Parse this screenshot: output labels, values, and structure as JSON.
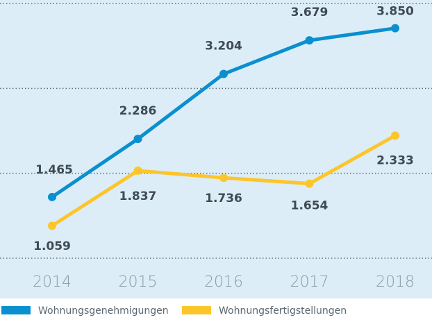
{
  "chart_data": {
    "type": "line",
    "categories": [
      "2014",
      "2015",
      "2016",
      "2017",
      "2018"
    ],
    "series": [
      {
        "name": "Wohnungsgenehmigungen",
        "color": "#0a8fcf",
        "values": [
          1465,
          2286,
          3204,
          3679,
          3850
        ],
        "value_labels": [
          "1.465",
          "2.286",
          "3.204",
          "3.679",
          "3.850"
        ]
      },
      {
        "name": "Wohnungsfertigstellungen",
        "color": "#fcc62a",
        "values": [
          1059,
          1837,
          1736,
          1654,
          2333
        ],
        "value_labels": [
          "1.059",
          "1.837",
          "1.736",
          "1.654",
          "2.333"
        ]
      }
    ],
    "ylim": [
      600,
      4200
    ],
    "yticks": [
      600,
      1800,
      3000,
      4200
    ],
    "grid": true
  }
}
